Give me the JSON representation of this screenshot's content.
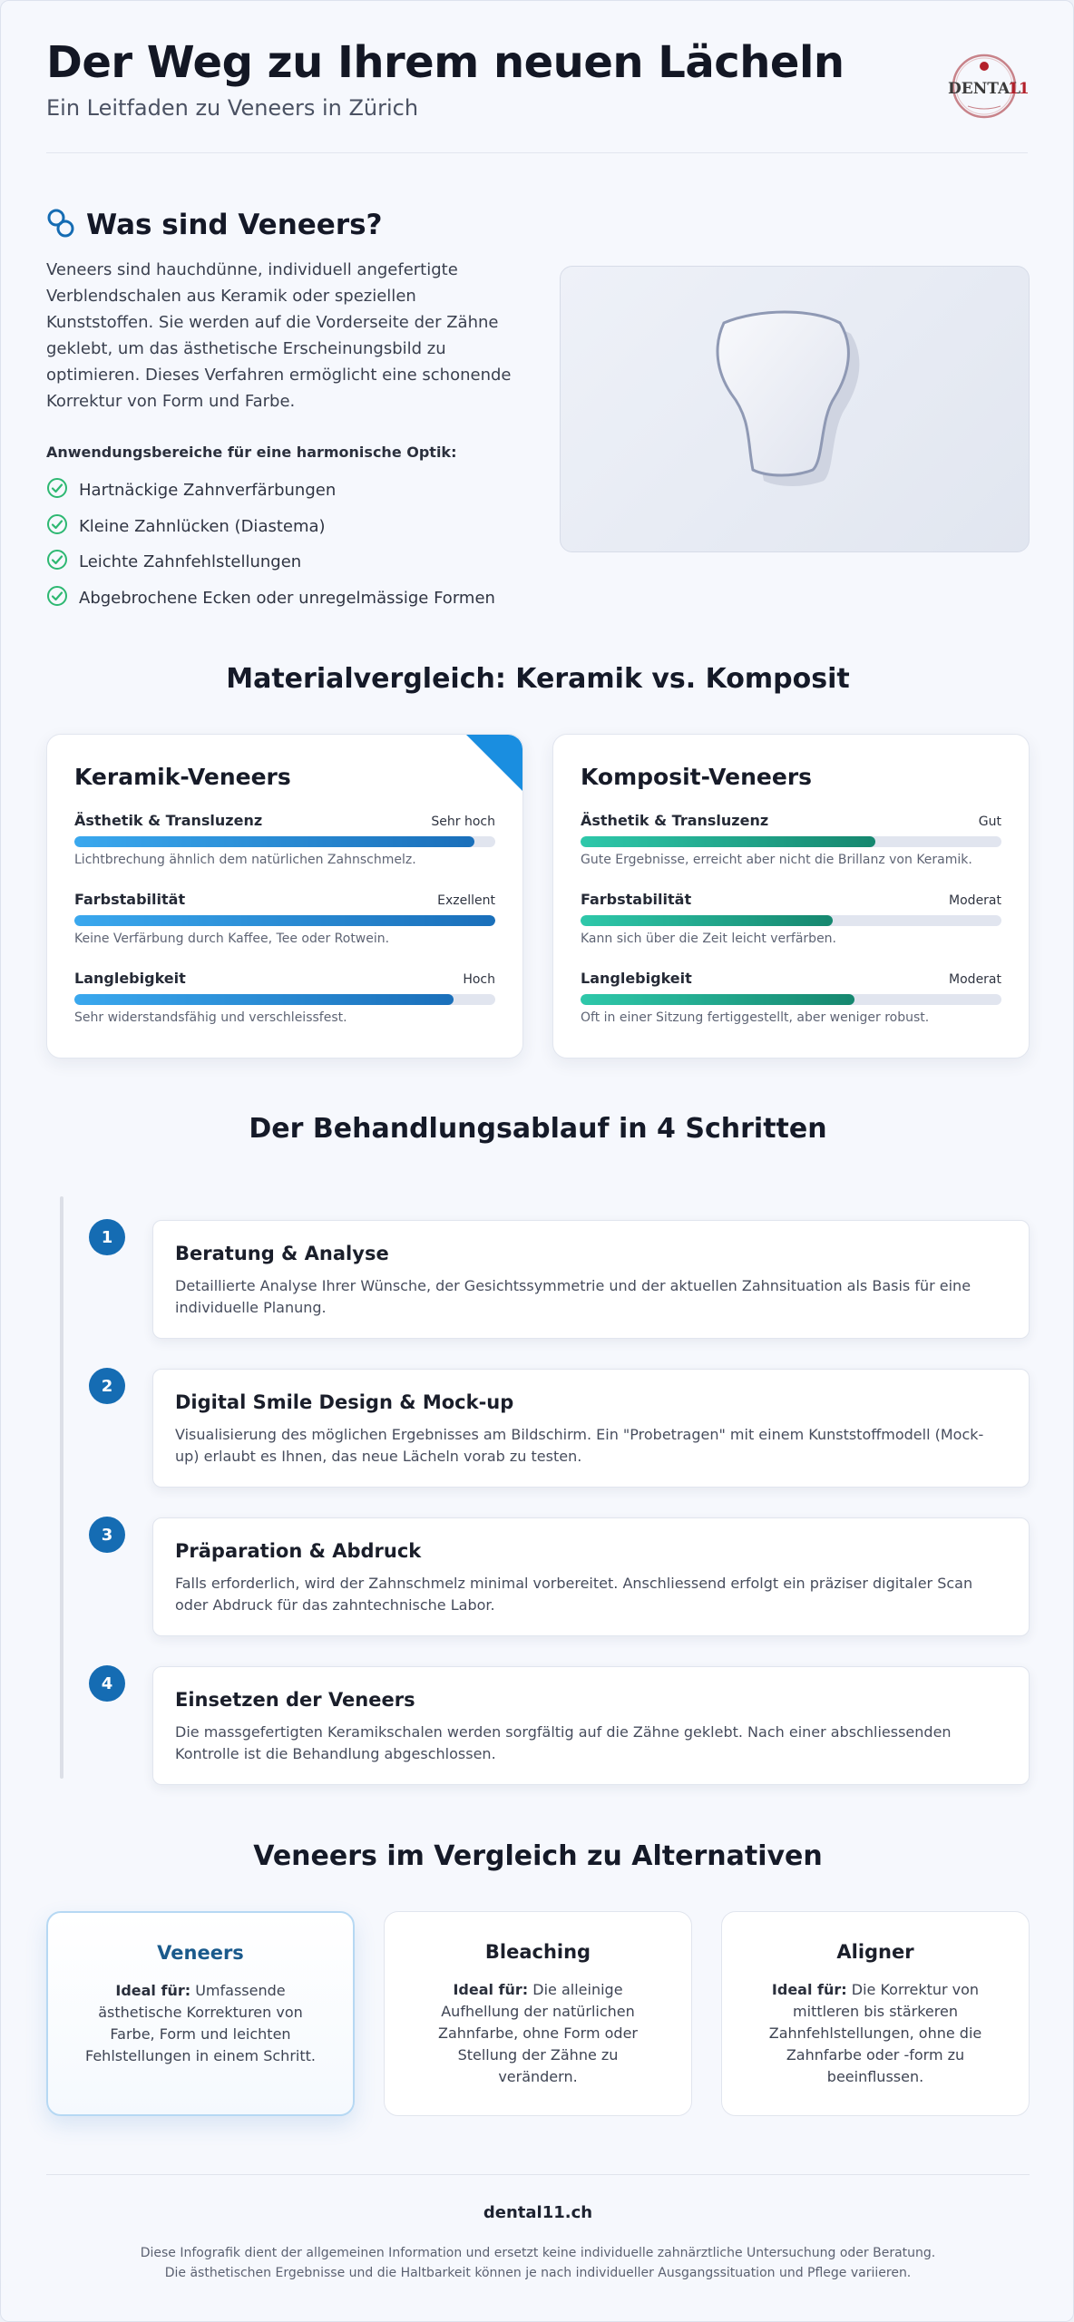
{
  "header": {
    "title": "Der Weg zu Ihrem neuen Lächeln",
    "subtitle": "Ein Leitfaden zu Veneers in Zürich",
    "logo_text": "DENTAL11",
    "logo_accent": "#b3202a"
  },
  "intro": {
    "heading": "Was sind Veneers?",
    "paragraph": "Veneers sind hauchdünne, individuell angefertigte Verblendschalen aus Keramik oder speziellen Kunststoffen. Sie werden auf die Vorderseite der Zähne geklebt, um das ästhetische Erscheinungsbild zu optimieren. Dieses Verfahren ermöglicht eine schonende Korrektur von Form und Farbe.",
    "list_label": "Anwendungsbereiche für eine harmonische Optik:",
    "items": [
      "Hartnäckige Zahnverfärbungen",
      "Kleine Zahnlücken (Diastema)",
      "Leichte Zahnfehlstellungen",
      "Abgebrochene Ecken oder unregelmässige Formen"
    ]
  },
  "materials": {
    "heading": "Materialvergleich: Keramik vs. Komposit",
    "cards": [
      {
        "title": "Keramik-Veneers",
        "metrics": [
          {
            "label": "Ästhetik & Transluzenz",
            "rating": "Sehr hoch",
            "level": 0.95,
            "desc": "Lichtbrechung ähnlich dem natürlichen Zahnschmelz."
          },
          {
            "label": "Farbstabilität",
            "rating": "Exzellent",
            "level": 1.0,
            "desc": "Keine Verfärbung durch Kaffee, Tee oder Rotwein."
          },
          {
            "label": "Langlebigkeit",
            "rating": "Hoch",
            "level": 0.9,
            "desc": "Sehr widerstandsfähig und verschleissfest."
          }
        ]
      },
      {
        "title": "Komposit-Veneers",
        "metrics": [
          {
            "label": "Ästhetik & Transluzenz",
            "rating": "Gut",
            "level": 0.7,
            "desc": "Gute Ergebnisse, erreicht aber nicht die Brillanz von Keramik."
          },
          {
            "label": "Farbstabilität",
            "rating": "Moderat",
            "level": 0.6,
            "desc": "Kann sich über die Zeit leicht verfärben."
          },
          {
            "label": "Langlebigkeit",
            "rating": "Moderat",
            "level": 0.65,
            "desc": "Oft in einer Sitzung fertiggestellt, aber weniger robust."
          }
        ]
      }
    ]
  },
  "process": {
    "heading": "Der Behandlungsablauf in 4 Schritten",
    "steps": [
      {
        "num": "1",
        "title": "Beratung & Analyse",
        "text": "Detaillierte Analyse Ihrer Wünsche, der Gesichtssymmetrie und der aktuellen Zahnsituation als Basis für eine individuelle Planung."
      },
      {
        "num": "2",
        "title": "Digital Smile Design & Mock-up",
        "text": "Visualisierung des möglichen Ergebnisses am Bildschirm. Ein \"Probetragen\" mit einem Kunststoffmodell (Mock-up) erlaubt es Ihnen, das neue Lächeln vorab zu testen."
      },
      {
        "num": "3",
        "title": "Präparation & Abdruck",
        "text": "Falls erforderlich, wird der Zahnschmelz minimal vorbereitet. Anschliessend erfolgt ein präziser digitaler Scan oder Abdruck für das zahntechnische Labor."
      },
      {
        "num": "4",
        "title": "Einsetzen der Veneers",
        "text": "Die massgefertigten Keramikschalen werden sorgfältig auf die Zähne geklebt. Nach einer abschliessenden Kontrolle ist die Behandlung abgeschlossen."
      }
    ]
  },
  "alternatives": {
    "heading": "Veneers im Vergleich zu Alternativen",
    "ideal_label": "Ideal für:",
    "cards": [
      {
        "title": "Veneers",
        "text": "Umfassende ästhetische Korrekturen von Farbe, Form und leichten Fehlstellungen in einem Schritt."
      },
      {
        "title": "Bleaching",
        "text": "Die alleinige Aufhellung der natürlichen Zahnfarbe, ohne Form oder Stellung der Zähne zu verändern."
      },
      {
        "title": "Aligner",
        "text": "Die Korrektur von mittleren bis stärkeren Zahnfehlstellungen, ohne die Zahnfarbe oder -form zu beeinflussen."
      }
    ]
  },
  "footer": {
    "site": "dental11.ch",
    "note_line1": "Diese Infografik dient der allgemeinen Information und ersetzt keine individuelle zahnärztliche Untersuchung oder Beratung.",
    "note_line2": "Die ästhetischen Ergebnisse und die Haltbarkeit können je nach individueller Ausgangssituation und Pflege variieren."
  },
  "colors": {
    "primary": "#156cb3",
    "check": "#2eb872",
    "ceramic_bar": "#1a6fba",
    "composite_bar": "#16876f"
  }
}
